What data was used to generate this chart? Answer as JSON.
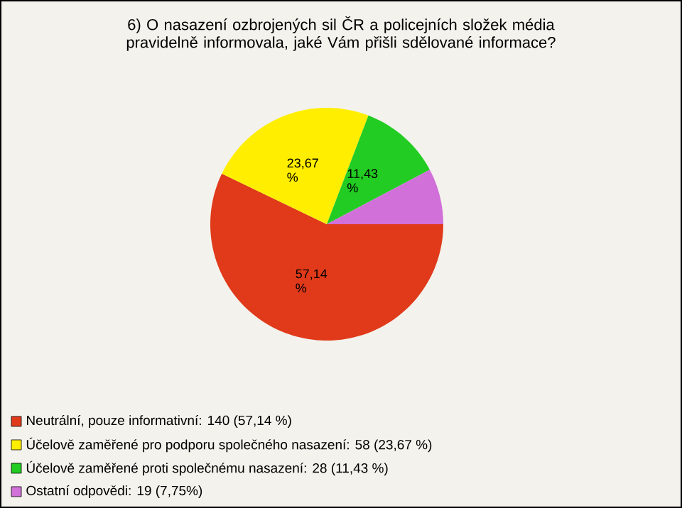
{
  "chart_data": {
    "type": "pie",
    "title": "6) O nasazení ozbrojených sil ČR a policejních složek média pravidelně informovala, jaké Vám přišli sdělované informace?",
    "categories": [
      "Neutrální, pouze informativní: 140 (57,14 %)",
      "Účelově zaměřené pro podporu společného nasazení: 58 (23,67 %)",
      "Účelově zaměřené proti společnému nasazení: 28 (11,43 %)",
      "Ostatní odpovědi: 19 (7,75%)"
    ],
    "values": [
      57.14,
      23.67,
      11.43,
      7.75
    ],
    "value_labels": [
      "57,14 %",
      "23,67 %",
      "11,43 %",
      null
    ],
    "colors": [
      "#e03a1a",
      "#ffee00",
      "#22cc22",
      "#d070d8"
    ],
    "legend": "bottom"
  }
}
